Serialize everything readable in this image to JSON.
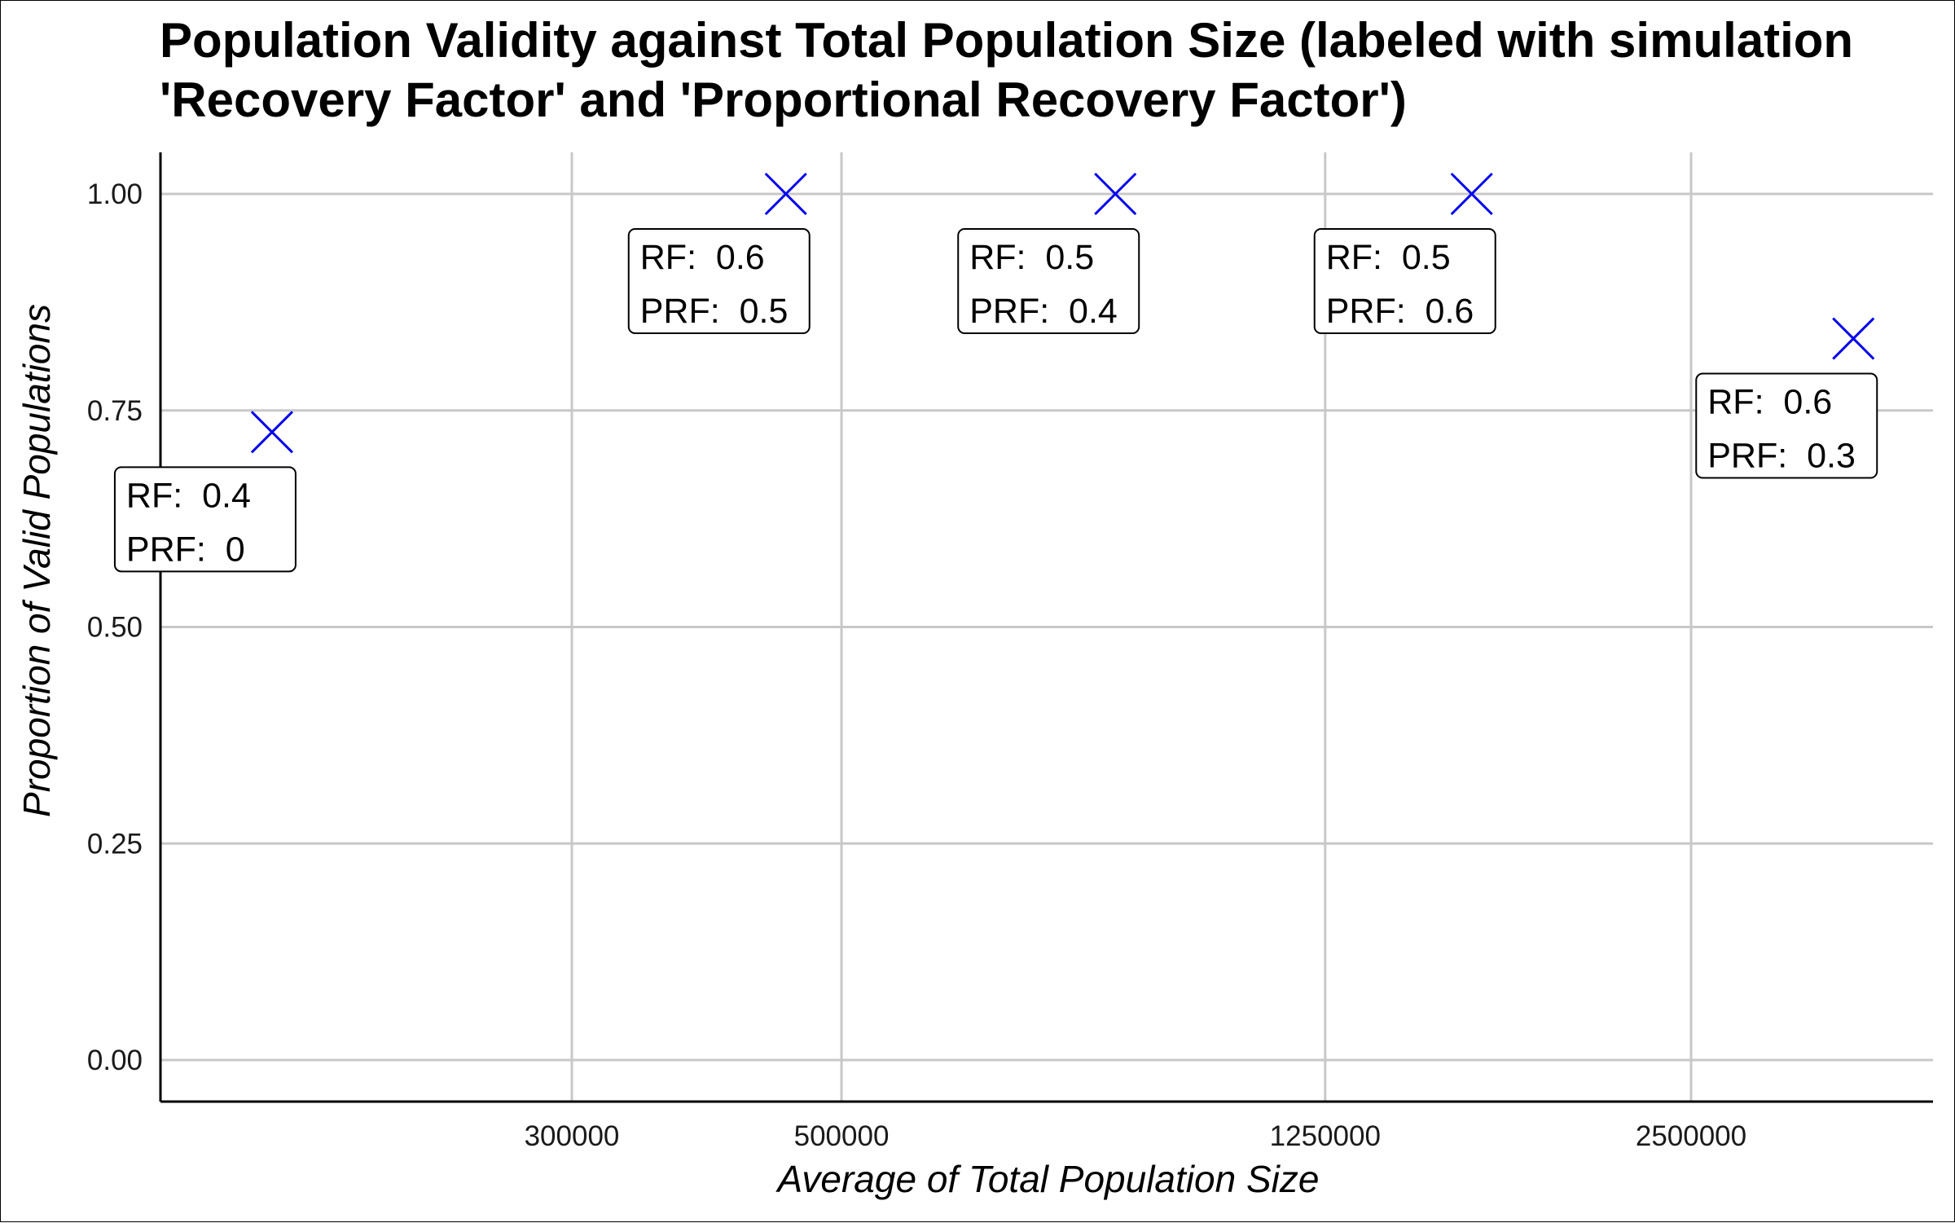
{
  "chart_data": {
    "type": "scatter",
    "title": "Population Validity against Total Population Size (labeled with simulation 'Recovery Factor' and 'Proportional Recovery Factor')",
    "xlabel": "Average of Total Population Size",
    "ylabel": "Proportion of Valid Populations",
    "x_scale": "log",
    "x_ticks": [
      300000,
      500000,
      1250000,
      2500000
    ],
    "x_tick_labels": [
      "300000",
      "500000",
      "1250000",
      "2500000"
    ],
    "y_ticks": [
      0,
      0.25,
      0.5,
      0.75,
      1.0
    ],
    "y_tick_labels": [
      "0.00",
      "0.25",
      "0.50",
      "0.75",
      "1.00"
    ],
    "ylim": [
      -0.05,
      1.05
    ],
    "grid": true,
    "marker": "x",
    "marker_color": "#0000ee",
    "points": [
      {
        "x": 170000,
        "y": 0.725,
        "label_lines": [
          "RF:  0.4",
          "PRF:  0"
        ]
      },
      {
        "x": 450000,
        "y": 1.0,
        "label_lines": [
          "RF:  0.6",
          "PRF:  0.5"
        ]
      },
      {
        "x": 840000,
        "y": 1.0,
        "label_lines": [
          "RF:  0.5",
          "PRF:  0.4"
        ]
      },
      {
        "x": 1650000,
        "y": 1.0,
        "label_lines": [
          "RF:  0.5",
          "PRF:  0.6"
        ]
      },
      {
        "x": 3400000,
        "y": 0.833,
        "label_lines": [
          "RF:  0.6",
          "PRF:  0.3"
        ]
      }
    ]
  }
}
